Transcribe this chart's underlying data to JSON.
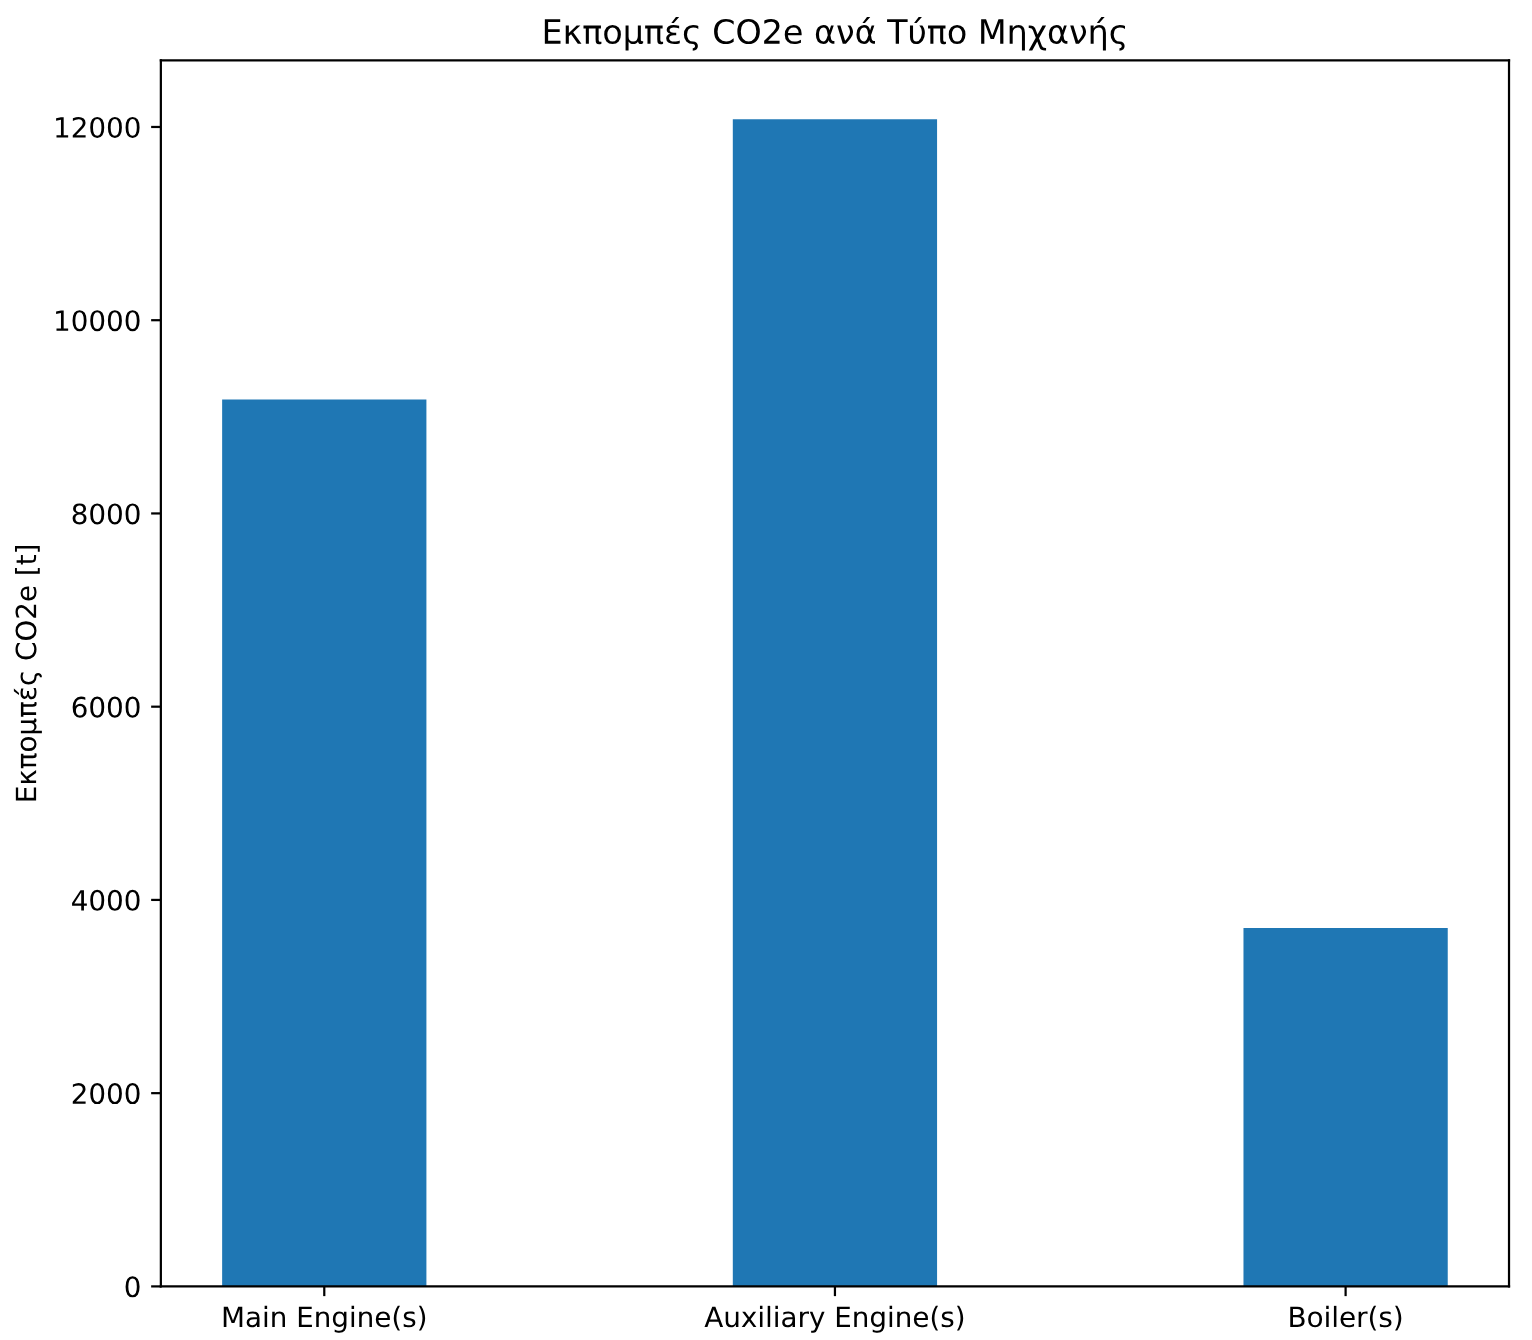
{
  "chart_data": {
    "type": "bar",
    "title": "Εκπομπές CO2e ανά Τύπο Μηχανής",
    "ylabel": "Εκπομπές CO2e [t]",
    "categories": [
      "Main Engine(s)",
      "Auxiliary Engine(s)",
      "Boiler(s)"
    ],
    "values": [
      9180,
      12080,
      3710
    ],
    "color": "#1f77b4",
    "ylim": [
      0,
      12690
    ],
    "yticks": [
      0,
      2000,
      4000,
      6000,
      8000,
      10000,
      12000
    ],
    "grid": false,
    "legend": false
  }
}
